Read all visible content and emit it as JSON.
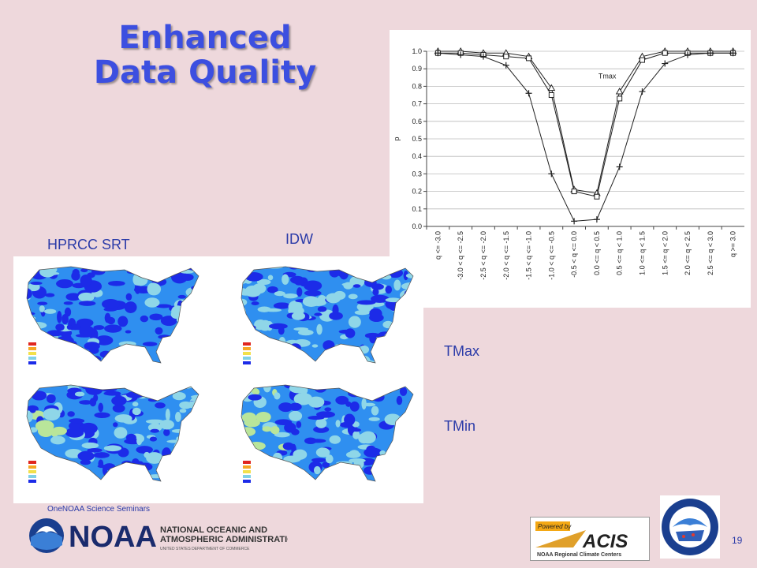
{
  "slide": {
    "title_line1": "Enhanced",
    "title_line2": "Data Quality",
    "label_hprcc": "HPRCC  SRT",
    "label_idw": "IDW",
    "label_tmax": "TMax",
    "label_tmin": "TMin",
    "footer": "OneNOAA  Science Seminars",
    "page_number": "19"
  },
  "colors": {
    "background": "#eed8dc",
    "title": "#3c4fe0",
    "label_text": "#2a3aa8",
    "map_dark": "#1c2be8",
    "map_medium": "#2f8ff0",
    "map_light": "#b9e59a",
    "map_cyan": "#8fd6e8"
  },
  "logos": {
    "noaa_wordmark": "NOAA",
    "noaa_line1": "NATIONAL OCEANIC AND",
    "noaa_line2": "ATMOSPHERIC ADMINISTRATION",
    "noaa_line3": "UNITED STATES DEPARTMENT OF COMMERCE",
    "acis_powered": "Powered by",
    "acis_name": "ACIS",
    "acis_sub": "NOAA Regional Climate Centers",
    "rcc_ring_text": "NOAA Regional Climate Centers"
  },
  "chart_data": {
    "type": "line",
    "title": "",
    "xlabel": "",
    "ylabel": "p",
    "annotation": "Tmax",
    "ylim": [
      0,
      1.0
    ],
    "yticks": [
      "0.0",
      "0.1",
      "0.2",
      "0.3",
      "0.4",
      "0.5",
      "0.6",
      "0.7",
      "0.8",
      "0.9",
      "1.0"
    ],
    "grid": true,
    "legend": "none",
    "categories": [
      "q <= -3.0",
      "-3.0 < q <= -2.5",
      "-2.5 < q <= -2.0",
      "-2.0 < q <= -1.5",
      "-1.5 < q <= -1.0",
      "-1.0 < q <= -0.5",
      "-0.5 < q <= 0.0",
      "0.0 <= q < 0.5",
      "0.5 <= q < 1.0",
      "1.0 <= q < 1.5",
      "1.5 <= q < 2.0",
      "2.0 <= q < 2.5",
      "2.5 <= q < 3.0",
      "q >= 3.0"
    ],
    "series": [
      {
        "marker": "triangle",
        "values": [
          1.0,
          1.0,
          0.99,
          0.99,
          0.97,
          0.79,
          0.21,
          0.19,
          0.77,
          0.97,
          1.0,
          1.0,
          1.0,
          1.0
        ]
      },
      {
        "marker": "square",
        "values": [
          0.99,
          0.99,
          0.98,
          0.97,
          0.96,
          0.75,
          0.2,
          0.17,
          0.73,
          0.95,
          0.99,
          0.99,
          0.99,
          0.99
        ]
      },
      {
        "marker": "plus",
        "values": [
          0.99,
          0.98,
          0.97,
          0.92,
          0.76,
          0.3,
          0.03,
          0.04,
          0.34,
          0.77,
          0.93,
          0.98,
          0.99,
          0.99
        ]
      }
    ]
  }
}
